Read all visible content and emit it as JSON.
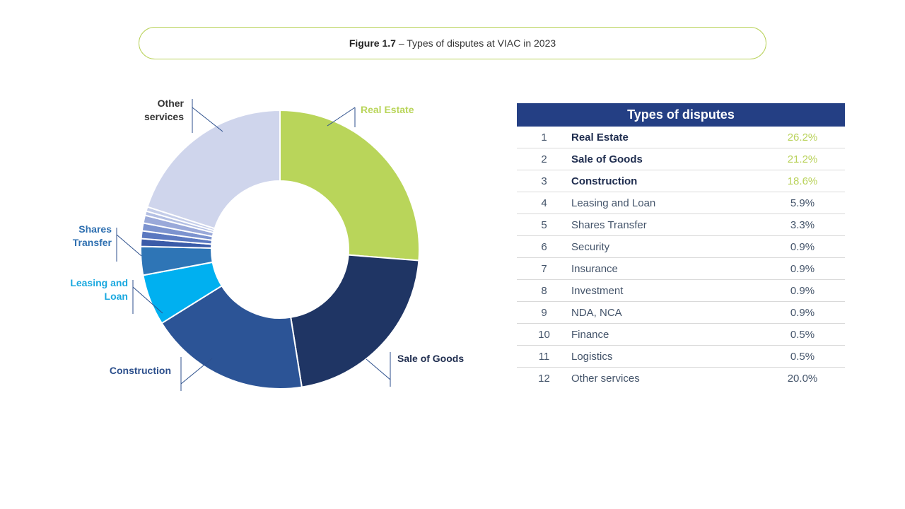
{
  "caption": {
    "figure": "Figure 1.7",
    "text": " – Types of disputes at VIAC in 2023"
  },
  "table": {
    "title": "Types of disputes",
    "rows": [
      {
        "rank": "1",
        "name": "Real Estate",
        "pct": "26.2%"
      },
      {
        "rank": "2",
        "name": "Sale of Goods",
        "pct": "21.2%"
      },
      {
        "rank": "3",
        "name": "Construction",
        "pct": "18.6%"
      },
      {
        "rank": "4",
        "name": "Leasing and Loan",
        "pct": "5.9%"
      },
      {
        "rank": "5",
        "name": "Shares Transfer",
        "pct": "3.3%"
      },
      {
        "rank": "6",
        "name": "Security",
        "pct": "0.9%"
      },
      {
        "rank": "7",
        "name": "Insurance",
        "pct": "0.9%"
      },
      {
        "rank": "8",
        "name": "Investment",
        "pct": "0.9%"
      },
      {
        "rank": "9",
        "name": "NDA, NCA",
        "pct": "0.9%"
      },
      {
        "rank": "10",
        "name": "Finance",
        "pct": "0.5%"
      },
      {
        "rank": "11",
        "name": "Logistics",
        "pct": "0.5%"
      },
      {
        "rank": "12",
        "name": "Other services",
        "pct": "20.0%"
      }
    ]
  },
  "chart_data": {
    "type": "pie",
    "donut": true,
    "categories": [
      "Real Estate",
      "Sale of Goods",
      "Construction",
      "Leasing and Loan",
      "Shares Transfer",
      "Security",
      "Insurance",
      "Investment",
      "NDA, NCA",
      "Finance",
      "Logistics",
      "Other services"
    ],
    "values": [
      26.2,
      21.2,
      18.6,
      5.9,
      3.3,
      0.9,
      0.9,
      0.9,
      0.9,
      0.5,
      0.5,
      20.0
    ],
    "colors": [
      "#b9d55a",
      "#1f3564",
      "#2c5496",
      "#00b0f0",
      "#2e75b6",
      "#3a5ba8",
      "#5a78c0",
      "#7c93cf",
      "#9aa9d9",
      "#b3bfe3",
      "#c4cde9",
      "#cfd5ec"
    ],
    "labels": [
      {
        "text": "Real Estate",
        "color": "#b9d55a"
      },
      {
        "text": "Sale of Goods",
        "color": "#1f2d4f"
      },
      {
        "text": "Construction",
        "color": "#2c4f8c"
      },
      {
        "text": "Leasing and Loan",
        "color": "#19a8df"
      },
      {
        "text": "Shares Transfer",
        "color": "#2e6fb0"
      },
      {
        "text": "Other services",
        "color": "#333333"
      }
    ]
  }
}
